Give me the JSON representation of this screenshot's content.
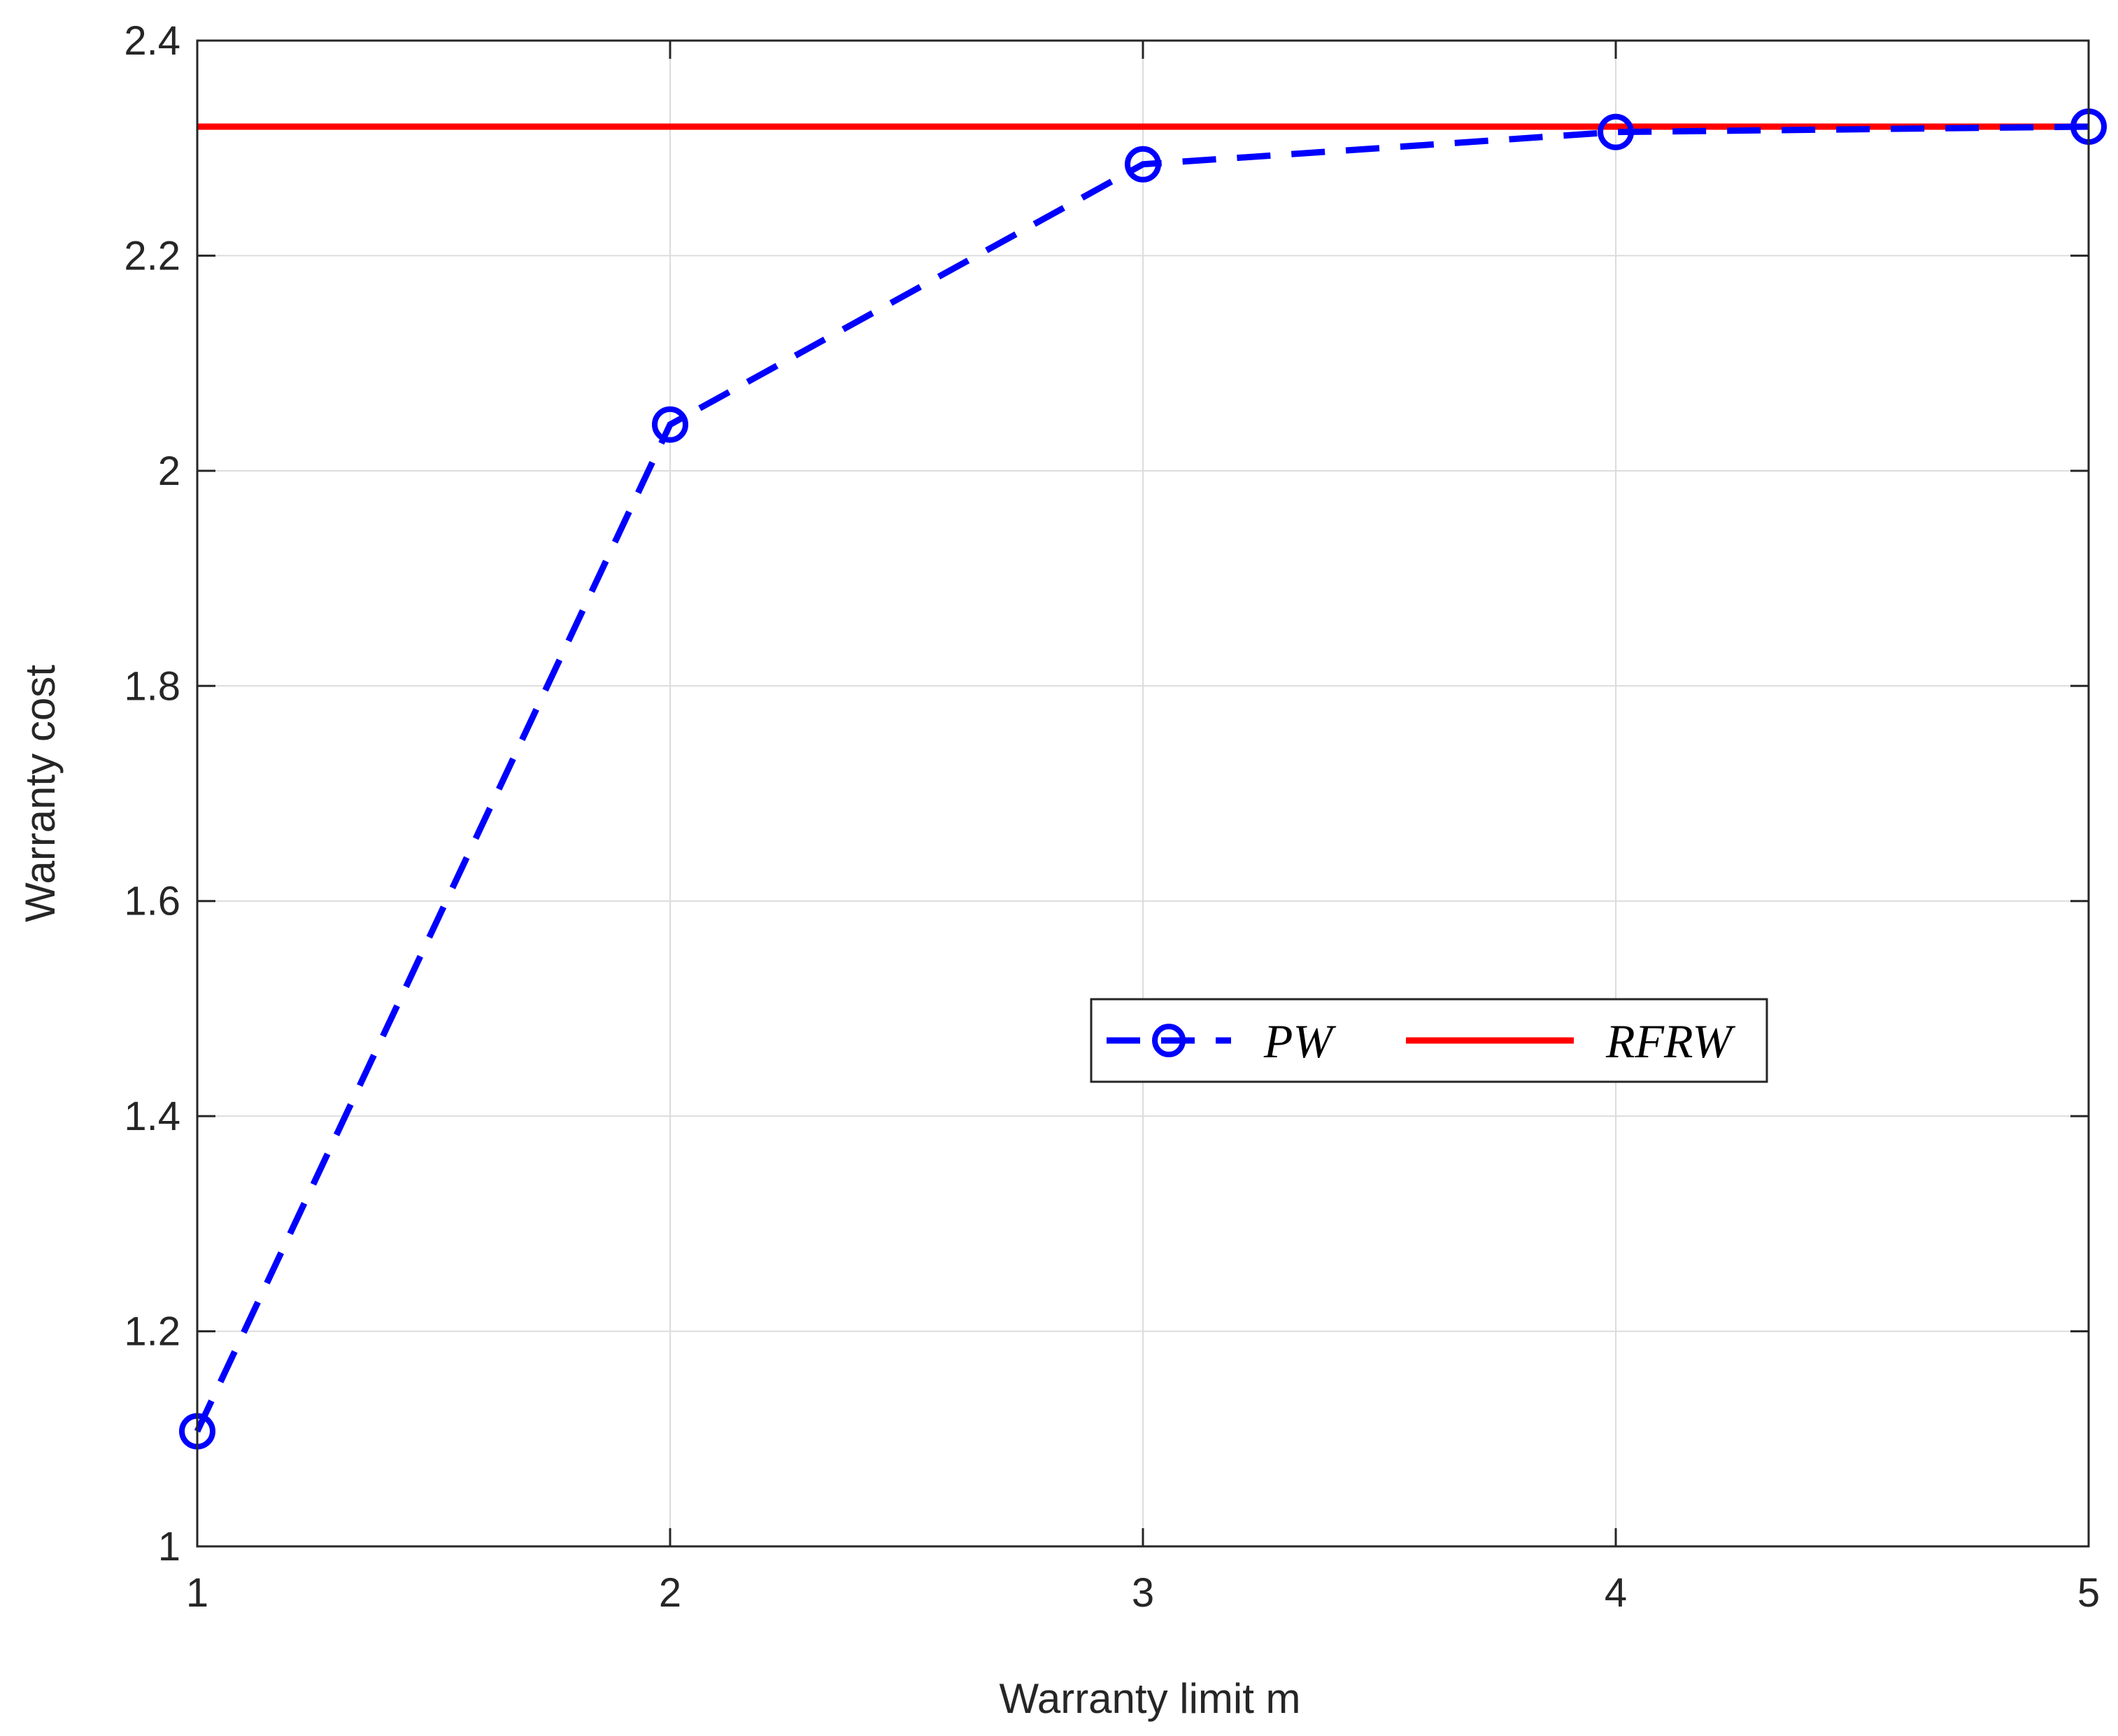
{
  "chart_data": {
    "type": "line",
    "xlabel": "Warranty limit   m",
    "ylabel": "Warranty cost",
    "xlim": [
      1,
      5
    ],
    "ylim": [
      1,
      2.4
    ],
    "xticks": [
      "1",
      "2",
      "3",
      "4",
      "5"
    ],
    "yticks": [
      "1",
      "1.2",
      "1.4",
      "1.6",
      "1.8",
      "2",
      "2.2",
      "2.4"
    ],
    "grid": true,
    "legend_placement": "center-right",
    "series": [
      {
        "name": "PW",
        "style": "dashed-circle-markers",
        "color": "#0000ff",
        "x": [
          1,
          2,
          3,
          4,
          5
        ],
        "y": [
          1.107,
          2.043,
          2.285,
          2.315,
          2.32
        ]
      },
      {
        "name": "RFRW",
        "style": "solid",
        "color": "#ff0000",
        "x": [
          1,
          5
        ],
        "y": [
          2.32,
          2.32
        ]
      }
    ]
  }
}
